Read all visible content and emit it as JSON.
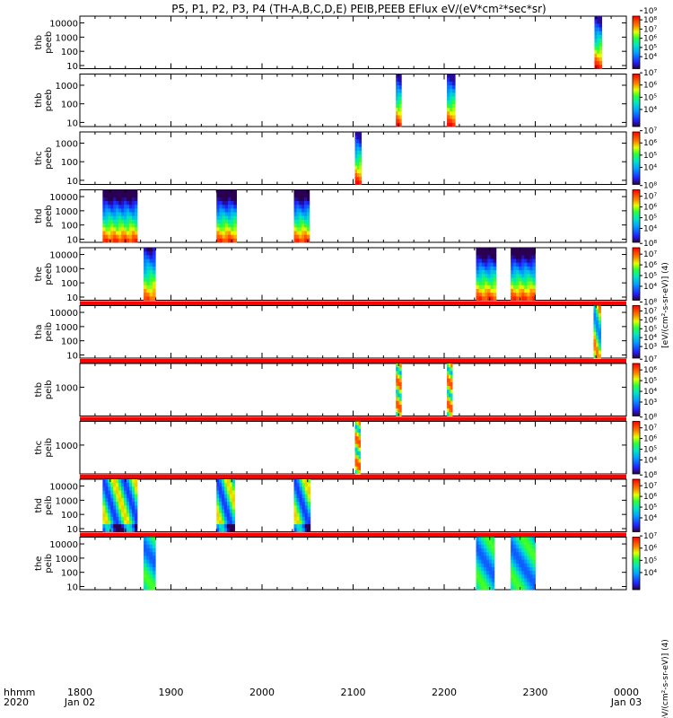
{
  "title": "P5, P1, P2, P3, P4 (TH-A,B,C,D,E) PEIB,PEEB EFlux eV/(eV*cm²*sec*sr)",
  "time_axis": {
    "row1_label": "hhmm",
    "row2_label": "2020",
    "start_hours": 18,
    "end_hours": 24,
    "ticks": [
      {
        "t": 18.0,
        "label": "1800",
        "date": "Jan 02"
      },
      {
        "t": 19.0,
        "label": "1900",
        "date": ""
      },
      {
        "t": 20.0,
        "label": "2000",
        "date": ""
      },
      {
        "t": 21.0,
        "label": "2100",
        "date": ""
      },
      {
        "t": 22.0,
        "label": "2200",
        "date": ""
      },
      {
        "t": 23.0,
        "label": "2300",
        "date": ""
      },
      {
        "t": 24.0,
        "label": "0000",
        "date": "Jan 03"
      }
    ]
  },
  "colorbar_labels": {
    "peeb": "[eV/(cm²-s-sr-eV)] (4)",
    "peib": "[eV/(cm²-s-sr-eV)] (4)"
  },
  "chart_data": {
    "type": "heatmap",
    "panels": [
      {
        "probe": "thb",
        "species": "peeb",
        "ylabel": [
          "thb",
          "peeb"
        ],
        "yticks": [
          "10",
          "100",
          "1000",
          "10000"
        ],
        "ymin": 6,
        "ymax": 30000,
        "cbar_ticks": [
          "10⁴",
          "10⁵",
          "10⁶",
          "10⁷",
          "10⁸",
          "10⁹"
        ],
        "cbar_range": [
          3.7,
          9.4
        ],
        "bursts": [
          {
            "start": 23.65,
            "end": 23.73,
            "profile": "thb_e"
          }
        ],
        "band": false
      },
      {
        "probe": "thb",
        "species": "peeb",
        "ylabel": [
          "thb",
          "peeb"
        ],
        "yticks": [
          "10",
          "100",
          "1000"
        ],
        "ymin": 6,
        "ymax": 4000,
        "cbar_ticks": [
          "10⁴",
          "10⁵",
          "10⁶",
          "10⁷"
        ],
        "cbar_range": [
          3.6,
          7.9
        ],
        "bursts": [
          {
            "start": 21.47,
            "end": 21.53,
            "profile": "e1"
          },
          {
            "start": 22.03,
            "end": 22.12,
            "profile": "e2"
          }
        ],
        "band": false
      },
      {
        "probe": "thc",
        "species": "peeb",
        "ylabel": [
          "thc",
          "peeb"
        ],
        "yticks": [
          "10",
          "100",
          "1000"
        ],
        "ymin": 6,
        "ymax": 4000,
        "cbar_ticks": [
          "10⁴",
          "10⁵",
          "10⁶",
          "10⁷"
        ],
        "cbar_range": [
          3.6,
          7.9
        ],
        "bursts": [
          {
            "start": 21.02,
            "end": 21.09,
            "profile": "e3"
          }
        ],
        "band": false
      },
      {
        "probe": "thd",
        "species": "peeb",
        "ylabel": [
          "thd",
          "peeb"
        ],
        "yticks": [
          "10",
          "100",
          "1000",
          "10000"
        ],
        "ymin": 6,
        "ymax": 30000,
        "cbar_ticks": [
          "10⁴",
          "10⁵",
          "10⁶",
          "10⁷",
          "10⁸"
        ],
        "cbar_range": [
          3.7,
          8.6
        ],
        "bursts": [
          {
            "start": 18.25,
            "end": 18.63,
            "profile": "d"
          },
          {
            "start": 19.5,
            "end": 19.72,
            "profile": "d"
          },
          {
            "start": 20.35,
            "end": 20.52,
            "profile": "d"
          }
        ],
        "band": false
      },
      {
        "probe": "the",
        "species": "peeb",
        "ylabel": [
          "the",
          "peeb"
        ],
        "yticks": [
          "10",
          "100",
          "1000",
          "10000"
        ],
        "ymin": 6,
        "ymax": 30000,
        "cbar_ticks": [
          "10⁴",
          "10⁵",
          "10⁶",
          "10⁷",
          "10⁸"
        ],
        "cbar_range": [
          3.7,
          8.6
        ],
        "bursts": [
          {
            "start": 18.7,
            "end": 18.83,
            "profile": "ea"
          },
          {
            "start": 22.35,
            "end": 22.57,
            "profile": "d"
          },
          {
            "start": 22.73,
            "end": 23.0,
            "profile": "d"
          }
        ],
        "band": true
      },
      {
        "probe": "tha",
        "species": "peib",
        "ylabel": [
          "tha",
          "peib"
        ],
        "yticks": [
          "10",
          "100",
          "1000",
          "10000"
        ],
        "ymin": 6,
        "ymax": 30000,
        "cbar_ticks": [
          "10³",
          "10⁴",
          "10⁵",
          "10⁶",
          "10⁷",
          "10⁸"
        ],
        "cbar_range": [
          2.7,
          8.6
        ],
        "bursts": [
          {
            "start": 23.64,
            "end": 23.72,
            "profile": "ia"
          }
        ],
        "band": true
      },
      {
        "probe": "thb",
        "species": "peib",
        "ylabel": [
          "thb",
          "peib"
        ],
        "yticks": [
          "1000"
        ],
        "ymin": 80,
        "ymax": 8000,
        "cbar_ticks": [
          "10³",
          "10⁴",
          "10⁵",
          "10⁶",
          "10⁷"
        ],
        "cbar_range": [
          2.7,
          7.6
        ],
        "bursts": [
          {
            "start": 21.47,
            "end": 21.53,
            "profile": "ib"
          },
          {
            "start": 22.03,
            "end": 22.09,
            "profile": "ib"
          }
        ],
        "band": true
      },
      {
        "probe": "thc",
        "species": "peib",
        "ylabel": [
          "thc",
          "peib"
        ],
        "yticks": [
          "1000"
        ],
        "ymin": 80,
        "ymax": 8000,
        "cbar_ticks": [
          "10⁴",
          "10⁵",
          "10⁶",
          "10⁷",
          "10⁸"
        ],
        "cbar_range": [
          3.7,
          8.6
        ],
        "bursts": [
          {
            "start": 21.02,
            "end": 21.08,
            "profile": "ib"
          }
        ],
        "band": true
      },
      {
        "probe": "thd",
        "species": "peib",
        "ylabel": [
          "thd",
          "peib"
        ],
        "yticks": [
          "10",
          "100",
          "1000",
          "10000"
        ],
        "ymin": 6,
        "ymax": 30000,
        "cbar_ticks": [
          "10⁴",
          "10⁵",
          "10⁶",
          "10⁷",
          "10⁸"
        ],
        "cbar_range": [
          3.7,
          8.6
        ],
        "bursts": [
          {
            "start": 18.25,
            "end": 18.63,
            "profile": "id"
          },
          {
            "start": 19.5,
            "end": 19.7,
            "profile": "id"
          },
          {
            "start": 20.35,
            "end": 20.53,
            "profile": "id"
          }
        ],
        "band": true
      },
      {
        "probe": "the",
        "species": "peib",
        "ylabel": [
          "the",
          "peib"
        ],
        "yticks": [
          "10",
          "100",
          "1000",
          "10000"
        ],
        "ymin": 6,
        "ymax": 30000,
        "cbar_ticks": [
          "10⁴",
          "10⁵",
          "10⁶",
          "10⁷"
        ],
        "cbar_range": [
          3.6,
          7.9
        ],
        "bursts": [
          {
            "start": 18.7,
            "end": 18.83,
            "profile": "ie"
          },
          {
            "start": 22.35,
            "end": 22.55,
            "profile": "ie"
          },
          {
            "start": 22.73,
            "end": 23.0,
            "profile": "ie"
          }
        ],
        "band": false
      }
    ]
  }
}
